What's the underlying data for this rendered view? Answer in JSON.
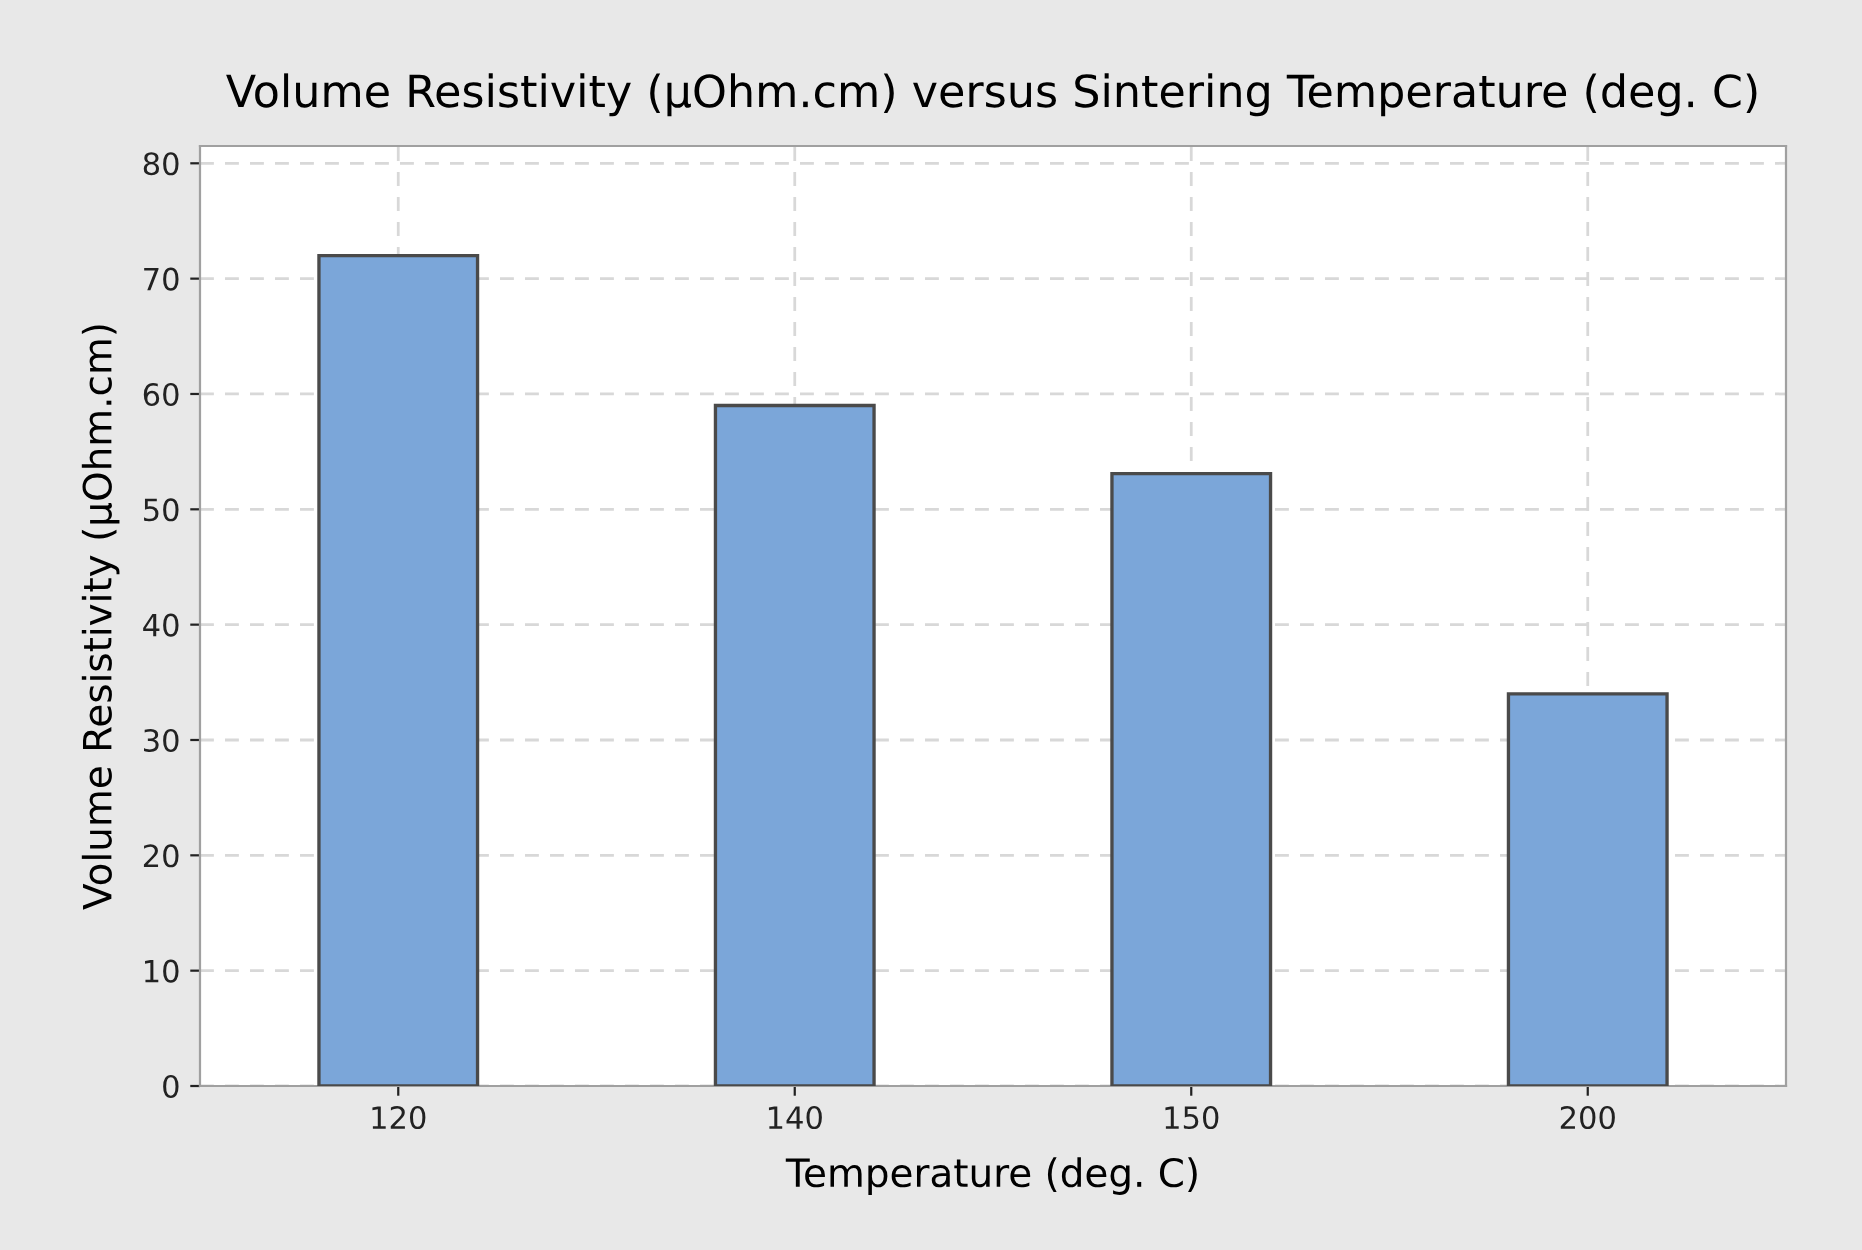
{
  "chart_data": {
    "type": "bar",
    "title": "Volume Resistivity (µOhm.cm) versus Sintering Temperature (deg. C)",
    "xlabel": "Temperature (deg. C)",
    "ylabel": "Volume Resistivity (µOhm.cm)",
    "categories": [
      "120",
      "140",
      "150",
      "200"
    ],
    "values": [
      72,
      59,
      53.1,
      34
    ],
    "color": "#7ba6d9",
    "ylim": [
      0,
      81.5
    ],
    "yticks": [
      0,
      10,
      20,
      30,
      40,
      50,
      60,
      70,
      80
    ],
    "grid": true,
    "legend": false
  }
}
